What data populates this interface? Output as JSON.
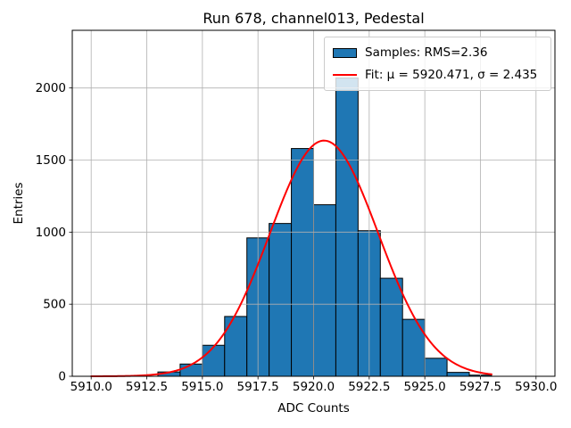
{
  "window": {
    "background": "#ffffff"
  },
  "figure": {
    "title": "Run 678, channel013, Pedestal",
    "xlabel": "ADC Counts",
    "ylabel": "Entries"
  },
  "legend": {
    "position": "upper right",
    "items": [
      {
        "handle": "patch",
        "label": "Samples: RMS=2.36",
        "color": "#1f77b4",
        "edge_color": "#000000"
      },
      {
        "handle": "line",
        "label": "Fit: μ = 5920.471, σ = 2.435",
        "color": "#ff0000"
      }
    ]
  },
  "chart_data": {
    "type": "bar",
    "subtype": "histogram-with-fit",
    "title": "Run 678, channel013, Pedestal",
    "xlabel": "ADC Counts",
    "ylabel": "Entries",
    "xlim": [
      5909.15,
      5930.85
    ],
    "ylim": [
      0,
      2400
    ],
    "x_ticks": [
      5910.0,
      5912.5,
      5915.0,
      5917.5,
      5920.0,
      5922.5,
      5925.0,
      5927.5,
      5930.0
    ],
    "x_tick_labels": [
      "5910.0",
      "5912.5",
      "5915.0",
      "5917.5",
      "5920.0",
      "5922.5",
      "5925.0",
      "5927.5",
      "5930.0"
    ],
    "y_ticks": [
      0,
      500,
      1000,
      1500,
      2000
    ],
    "y_tick_labels": [
      "0",
      "500",
      "1000",
      "1500",
      "2000"
    ],
    "grid": true,
    "grid_color": "#b0b0b0",
    "axes_color": "#000000",
    "bar_color": "#1f77b4",
    "bar_edge_color": "#000000",
    "bins": {
      "edges": [
        5913,
        5914,
        5915,
        5916,
        5917,
        5918,
        5919,
        5920,
        5921,
        5922,
        5923,
        5924,
        5925,
        5926,
        5927,
        5928
      ],
      "counts": [
        30,
        85,
        215,
        415,
        960,
        1060,
        1580,
        1190,
        2070,
        1010,
        680,
        395,
        125,
        27,
        8
      ]
    },
    "fit": {
      "type": "gaussian",
      "mu": 5920.471,
      "sigma": 2.435,
      "amplitude": 1635,
      "x_range": [
        5910,
        5928
      ],
      "color": "#ff0000",
      "rms_label_value": "2.36"
    },
    "legend_entries": [
      "Samples: RMS=2.36",
      "Fit: μ = 5920.471, σ = 2.435"
    ],
    "legend_position": "upper right"
  }
}
